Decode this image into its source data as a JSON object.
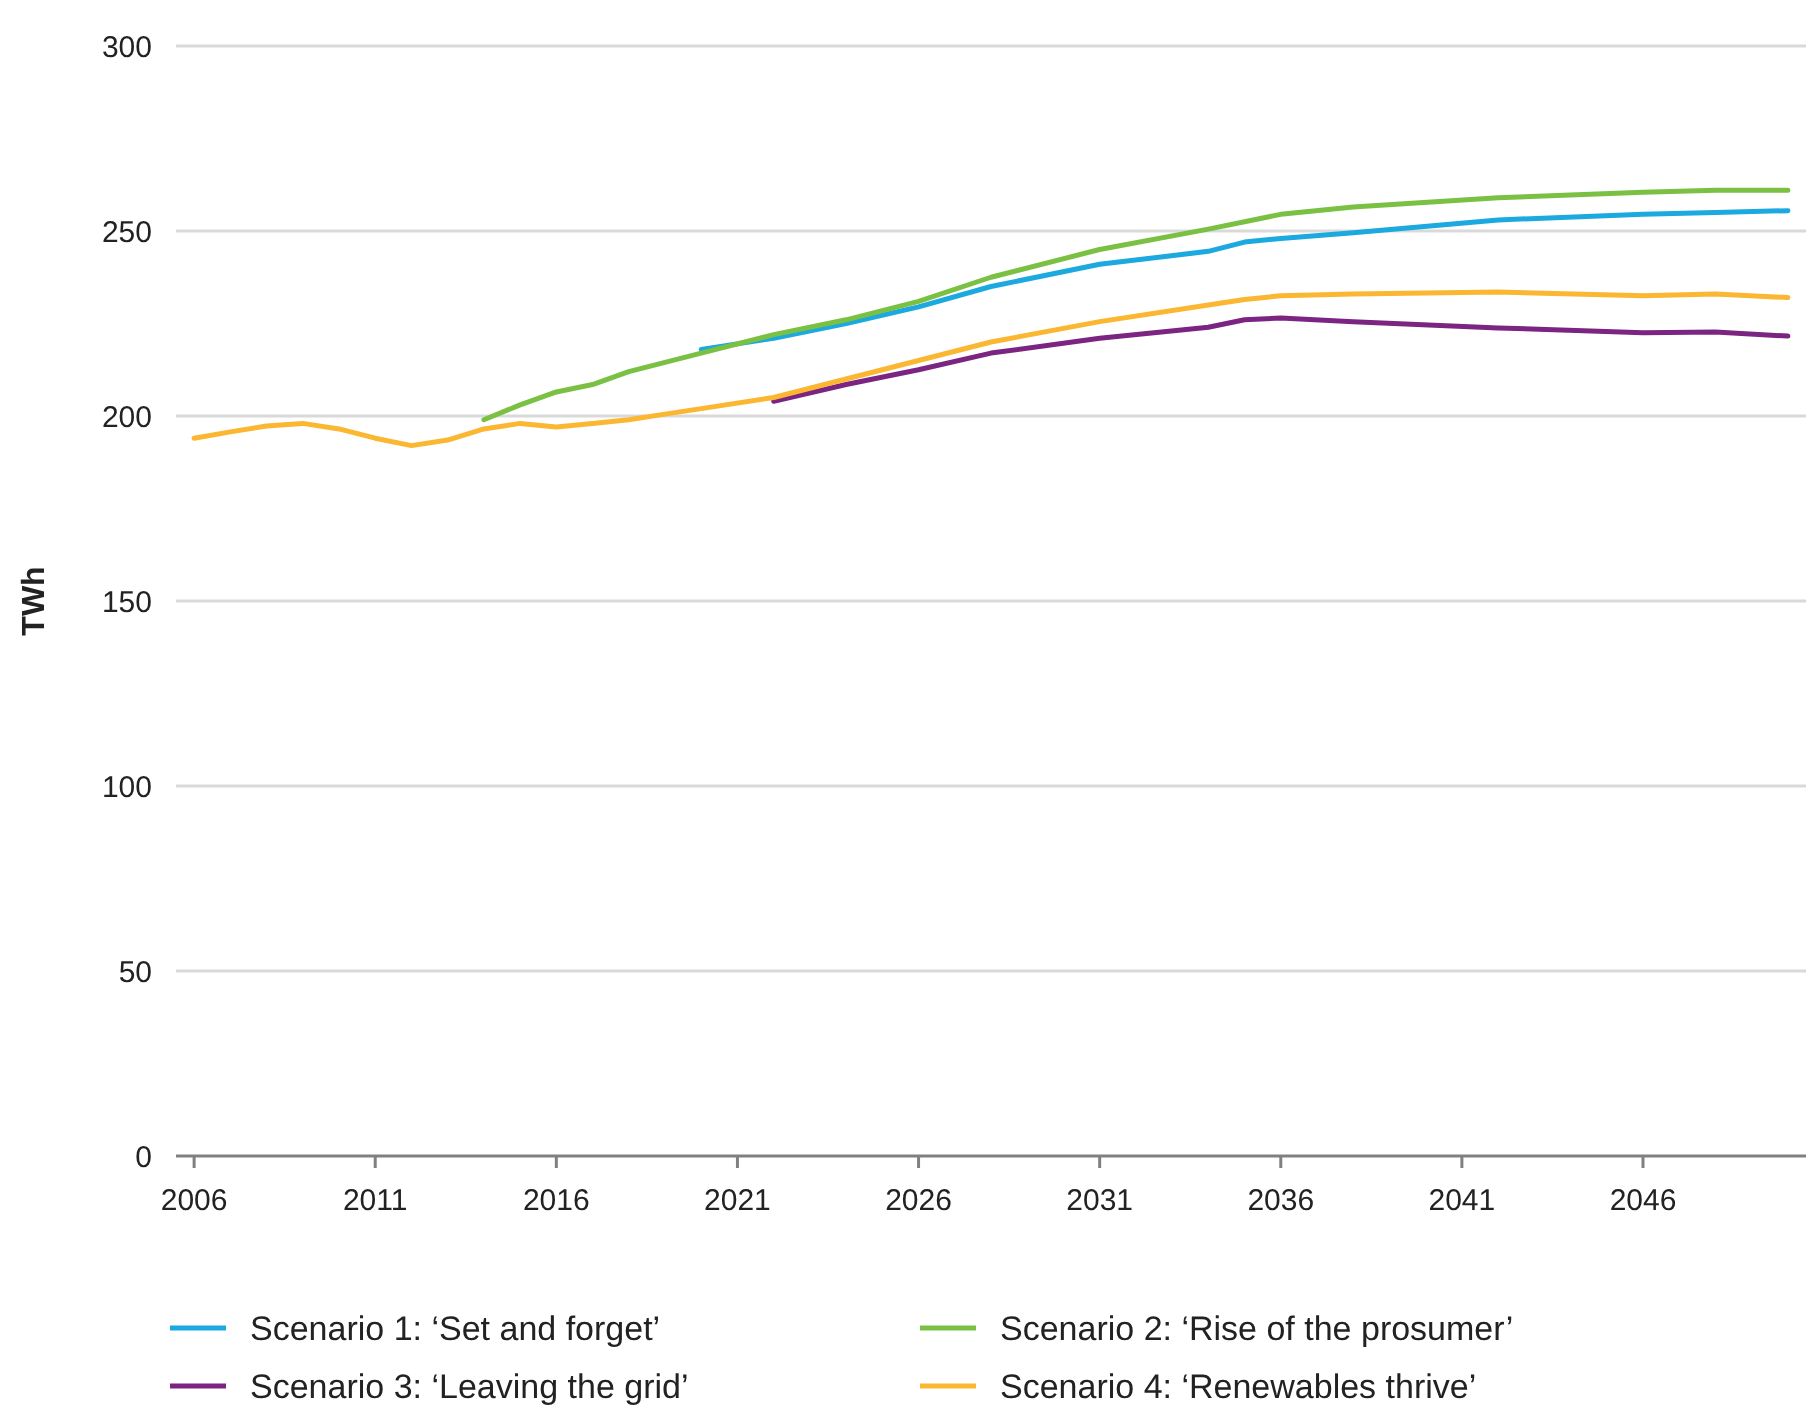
{
  "chart_data": {
    "type": "line",
    "ylabel": "TWh",
    "x": [
      2006,
      2007,
      2008,
      2009,
      2010,
      2011,
      2012,
      2013,
      2014,
      2015,
      2016,
      2017,
      2018,
      2019,
      2020,
      2022,
      2024,
      2026,
      2028,
      2031,
      2034,
      2035,
      2036,
      2038,
      2042,
      2046,
      2048,
      2050
    ],
    "series": [
      {
        "name": "Scenario 1: ‘Set and forget’",
        "color": "#1ba9e0",
        "values": [
          null,
          null,
          null,
          null,
          null,
          null,
          null,
          null,
          null,
          null,
          null,
          null,
          null,
          null,
          218,
          221,
          225,
          229.5,
          235,
          241,
          244.5,
          247,
          248,
          249.5,
          253,
          254.5,
          255,
          255.5
        ]
      },
      {
        "name": "Scenario 2: ‘Rise of the prosumer’",
        "color": "#7ac143",
        "values": [
          null,
          null,
          null,
          null,
          null,
          null,
          null,
          null,
          199,
          203,
          206.5,
          208.5,
          212,
          214.5,
          217,
          222,
          226,
          231,
          237.5,
          245,
          250.5,
          252.5,
          254.5,
          256.5,
          259,
          260.5,
          261,
          261
        ]
      },
      {
        "name": "Scenario 3: ‘Leaving the grid’",
        "color": "#7b2482",
        "values": [
          null,
          null,
          null,
          null,
          null,
          null,
          null,
          null,
          null,
          null,
          null,
          null,
          null,
          null,
          null,
          204,
          208.5,
          212.5,
          217,
          221,
          224,
          226,
          226.5,
          225.5,
          223.8,
          222.5,
          222.7,
          221.6
        ]
      },
      {
        "name": "Scenario 4: ‘Renewables thrive’",
        "color": "#fbb731",
        "values": [
          194,
          195.7,
          197.3,
          198,
          196.5,
          194,
          192,
          193.5,
          196.5,
          198,
          197,
          198,
          199,
          200.5,
          202,
          205,
          210,
          215,
          220,
          225.5,
          230,
          231.5,
          232.5,
          233,
          233.5,
          232.5,
          233,
          232
        ]
      }
    ],
    "xlim": [
      2005.5,
      2050.5
    ],
    "xticks": [
      2006,
      2011,
      2016,
      2021,
      2026,
      2031,
      2036,
      2041,
      2046
    ],
    "ylim": [
      0,
      300
    ],
    "yticks": [
      0,
      50,
      100,
      150,
      200,
      250,
      300
    ],
    "grid": "y",
    "legend": "bottom",
    "line_style": "solid",
    "marker": "none"
  }
}
